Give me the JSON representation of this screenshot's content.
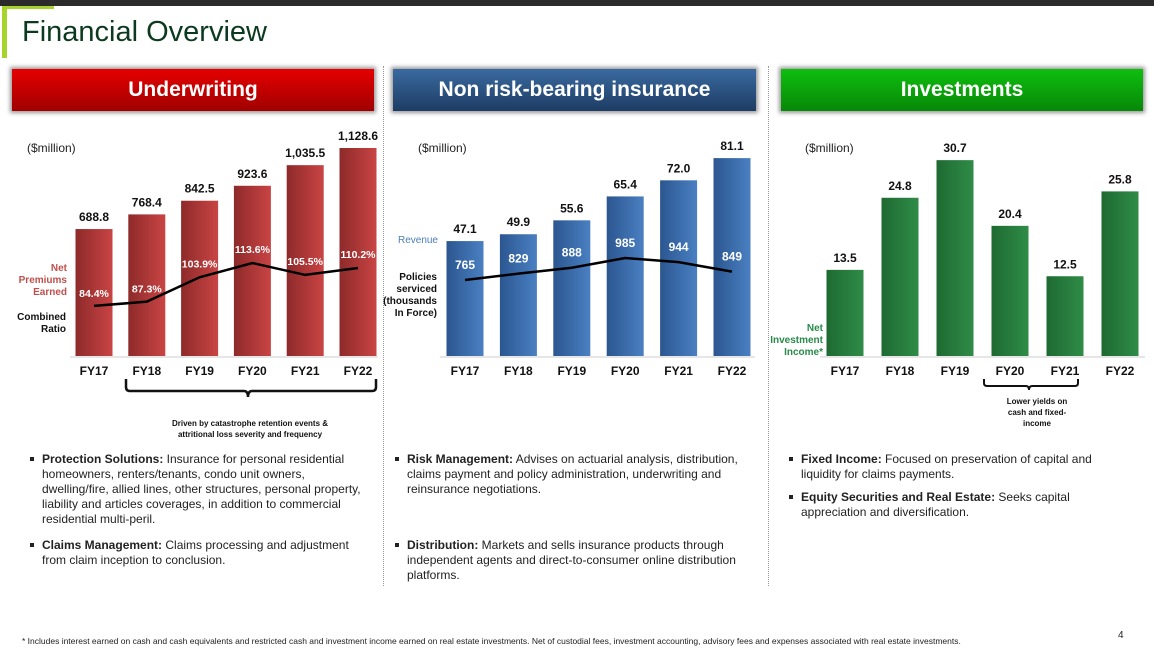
{
  "title": "Financial Overview",
  "sections": [
    {
      "header": "Underwriting",
      "unit": "($million)",
      "bar_label": "Net Premiums Earned",
      "line_label": "Combined Ratio",
      "note": "Driven by catastrophe retention events & attritional loss severity and frequency",
      "bullets": [
        {
          "bold": "Protection Solutions:",
          "text": " Insurance for personal residential homeowners, renters/tenants, condo unit owners, dwelling/fire, allied lines, other structures, personal property, liability and articles coverages, in addition to commercial residential multi-peril."
        },
        {
          "bold": "Claims Management:",
          "text": " Claims processing and adjustment from claim inception to conclusion."
        }
      ]
    },
    {
      "header": "Non risk-bearing insurance",
      "unit": "($million)",
      "bar_label": "Revenue",
      "line_label": "Policies serviced (thousands In Force)",
      "bullets": [
        {
          "bold": "Risk Management:",
          "text": " Advises on actuarial analysis, distribution, claims payment and policy administration, underwriting and reinsurance negotiations."
        },
        {
          "bold": "Distribution:",
          "text": " Markets and sells insurance products through independent agents and direct-to-consumer online distribution platforms."
        }
      ]
    },
    {
      "header": "Investments",
      "unit": "($million)",
      "bar_label": "Net Investment Income*",
      "note": "Lower yields on cash and fixed-income",
      "bullets": [
        {
          "bold": "Fixed Income:",
          "text": " Focused on preservation of capital and liquidity for claims payments."
        },
        {
          "bold": "Equity Securities and Real Estate:",
          "text": " Seeks capital appreciation and diversification."
        }
      ]
    }
  ],
  "chart_data": [
    {
      "type": "bar+line",
      "categories": [
        "FY17",
        "FY18",
        "FY19",
        "FY20",
        "FY21",
        "FY22"
      ],
      "series": [
        {
          "name": "Net Premiums Earned",
          "values": [
            688.8,
            768.4,
            842.5,
            923.6,
            1035.5,
            1128.6
          ],
          "labels": [
            "688.8",
            "768.4",
            "842.5",
            "923.6",
            "1,035.5",
            "1,128.6"
          ],
          "color": "#b83a3a"
        },
        {
          "name": "Combined Ratio",
          "values": [
            84.4,
            87.3,
            103.9,
            113.6,
            105.5,
            110.2
          ],
          "labels": [
            "84.4%",
            "87.3%",
            "103.9%",
            "113.6%",
            "105.5%",
            "110.2%"
          ]
        }
      ]
    },
    {
      "type": "bar+line",
      "categories": [
        "FY17",
        "FY18",
        "FY19",
        "FY20",
        "FY21",
        "FY22"
      ],
      "series": [
        {
          "name": "Revenue",
          "values": [
            47.1,
            49.9,
            55.6,
            65.4,
            72.0,
            81.1
          ],
          "labels": [
            "47.1",
            "49.9",
            "55.6",
            "65.4",
            "72.0",
            "81.1"
          ],
          "color": "#3a6bab"
        },
        {
          "name": "Policies serviced (thousands In Force)",
          "values": [
            765,
            829,
            888,
            985,
            944,
            849
          ],
          "labels": [
            "765",
            "829",
            "888",
            "985",
            "944",
            "849"
          ]
        }
      ]
    },
    {
      "type": "bar",
      "categories": [
        "FY17",
        "FY18",
        "FY19",
        "FY20",
        "FY21",
        "FY22"
      ],
      "series": [
        {
          "name": "Net Investment Income*",
          "values": [
            13.5,
            24.8,
            30.7,
            20.4,
            12.5,
            25.8
          ],
          "labels": [
            "13.5",
            "24.8",
            "30.7",
            "20.4",
            "12.5",
            "25.8"
          ],
          "color": "#2a7d3d"
        }
      ]
    }
  ],
  "footnote": "* Includes interest earned on cash and cash equivalents and restricted cash and investment income earned on real estate investments. Net of custodial fees, investment accounting, advisory fees and expenses associated with real estate investments.",
  "page_number": "4"
}
